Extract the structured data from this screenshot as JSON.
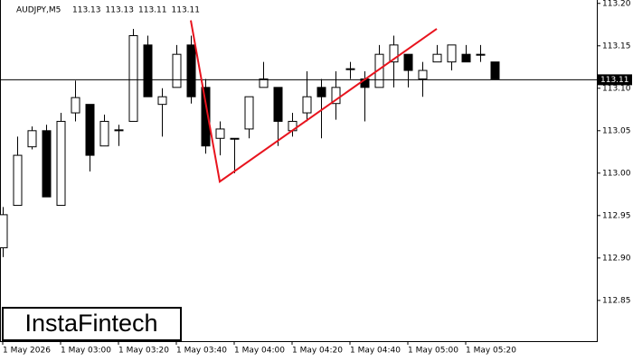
{
  "chart_data": {
    "type": "candlestick",
    "header": {
      "symbol": "AUDJPY,M5",
      "values": [
        113.13,
        113.13,
        113.11,
        113.11
      ]
    },
    "watermark": "InstaFintech",
    "categories": [
      "1 May 2026",
      null,
      null,
      null,
      "1 May 03:00",
      null,
      null,
      null,
      "1 May 03:20",
      null,
      null,
      null,
      "1 May 03:40",
      null,
      null,
      null,
      "1 May 04:00",
      null,
      null,
      null,
      "1 May 04:20",
      null,
      null,
      null,
      "1 May 04:40",
      null,
      null,
      null,
      "1 May 05:00",
      null,
      null,
      null,
      "1 May 05:20",
      null,
      null
    ],
    "open": [
      112.912,
      112.962,
      113.031,
      113.05,
      112.962,
      113.071,
      113.081,
      113.032,
      113.05,
      113.061,
      113.151,
      113.081,
      113.101,
      113.151,
      113.101,
      113.041,
      113.041,
      113.052,
      113.101,
      113.101,
      113.05,
      113.071,
      113.101,
      113.082,
      113.123,
      113.111,
      113.101,
      113.131,
      113.14,
      113.111,
      113.131,
      113.131,
      113.14,
      113.14,
      113.131
    ],
    "high": [
      112.96,
      113.043,
      113.055,
      113.057,
      113.071,
      113.109,
      113.081,
      113.069,
      113.057,
      113.17,
      113.162,
      113.1,
      113.151,
      113.162,
      113.111,
      113.061,
      113.041,
      113.09,
      113.131,
      113.101,
      113.071,
      113.12,
      113.111,
      113.12,
      113.131,
      113.12,
      113.151,
      113.162,
      113.14,
      113.131,
      113.151,
      113.151,
      113.151,
      113.151,
      113.131
    ],
    "low": [
      112.901,
      112.962,
      113.028,
      112.972,
      112.962,
      113.061,
      113.002,
      113.032,
      113.032,
      113.061,
      113.09,
      113.043,
      113.101,
      113.082,
      113.023,
      113.021,
      113.0,
      113.041,
      113.101,
      113.032,
      113.043,
      113.061,
      113.041,
      113.063,
      113.111,
      113.061,
      113.101,
      113.101,
      113.101,
      113.09,
      113.131,
      113.121,
      113.131,
      113.131,
      113.111
    ],
    "close": [
      112.951,
      113.021,
      113.05,
      112.972,
      113.061,
      113.089,
      113.021,
      113.061,
      113.051,
      113.162,
      113.09,
      113.09,
      113.14,
      113.09,
      113.032,
      113.052,
      113.041,
      113.09,
      113.111,
      113.061,
      113.061,
      113.09,
      113.09,
      113.101,
      113.123,
      113.101,
      113.14,
      113.151,
      113.121,
      113.121,
      113.14,
      113.151,
      113.131,
      113.14,
      113.111
    ],
    "up_color": "#ffffff",
    "down_color": "#000000",
    "pattern_line": {
      "color": "#e8141e",
      "x": [
        13,
        15,
        30
      ],
      "y": [
        113.18,
        112.99,
        113.17
      ]
    },
    "current_price": 113.11,
    "ylim": [
      112.802,
      113.204
    ],
    "yticks": [
      {
        "value": 113.2,
        "label": "113.20"
      },
      {
        "value": 113.15,
        "label": "113.15"
      },
      {
        "value": 113.1,
        "label": "113.10"
      },
      {
        "value": 113.05,
        "label": "113.05"
      },
      {
        "value": 113.0,
        "label": "113.00"
      },
      {
        "value": 112.95,
        "label": "112.95"
      },
      {
        "value": 112.9,
        "label": "112.90"
      },
      {
        "value": 112.85,
        "label": "112.85"
      }
    ]
  }
}
